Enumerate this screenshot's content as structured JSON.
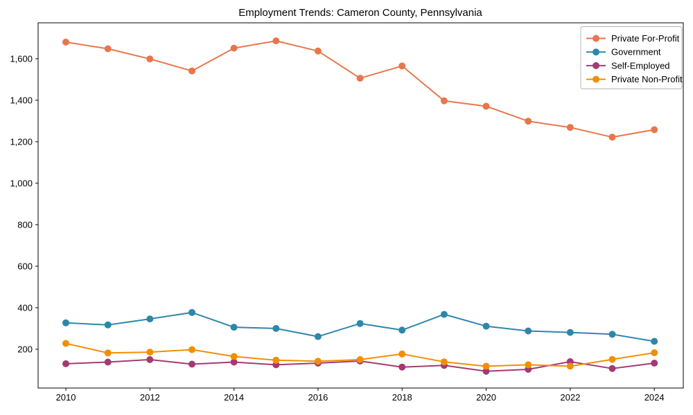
{
  "title": "Employment Trends: Cameron County, Pennsylvania",
  "chart_data": {
    "type": "line",
    "title": "Employment Trends: Cameron County, Pennsylvania",
    "x": [
      2010,
      2011,
      2012,
      2013,
      2014,
      2015,
      2016,
      2017,
      2018,
      2019,
      2020,
      2021,
      2022,
      2023,
      2024
    ],
    "series": [
      {
        "name": "Private For-Profit",
        "color": "#E8764C",
        "values": [
          1680,
          1648,
          1599,
          1541,
          1651,
          1686,
          1637,
          1506,
          1565,
          1397,
          1371,
          1299,
          1269,
          1222,
          1258
        ]
      },
      {
        "name": "Government",
        "color": "#2E86AB",
        "values": [
          327,
          317,
          346,
          377,
          306,
          300,
          261,
          324,
          292,
          368,
          311,
          288,
          281,
          272,
          238
        ]
      },
      {
        "name": "Self-Employed",
        "color": "#A23B72",
        "values": [
          130,
          138,
          150,
          128,
          138,
          125,
          133,
          143,
          114,
          122,
          94,
          103,
          140,
          107,
          133
        ]
      },
      {
        "name": "Private Non-Profit",
        "color": "#F18F01",
        "values": [
          228,
          182,
          186,
          198,
          165,
          147,
          142,
          150,
          177,
          139,
          118,
          125,
          118,
          151,
          183
        ]
      }
    ],
    "xticks": [
      2010,
      2012,
      2014,
      2016,
      2018,
      2020,
      2022,
      2024
    ],
    "yticks": [
      200,
      400,
      600,
      800,
      1000,
      1200,
      1400,
      1600
    ],
    "ytick_labels": [
      "200",
      "400",
      "600",
      "800",
      "1,000",
      "1,200",
      "1,400",
      "1,600"
    ],
    "xlim": [
      2009.34,
      2024.69
    ],
    "ylim": [
      13,
      1773
    ],
    "grid": false,
    "legend_position": "upper right",
    "marker": "circle",
    "background": "#ffffff",
    "spine_color": "#000000"
  }
}
